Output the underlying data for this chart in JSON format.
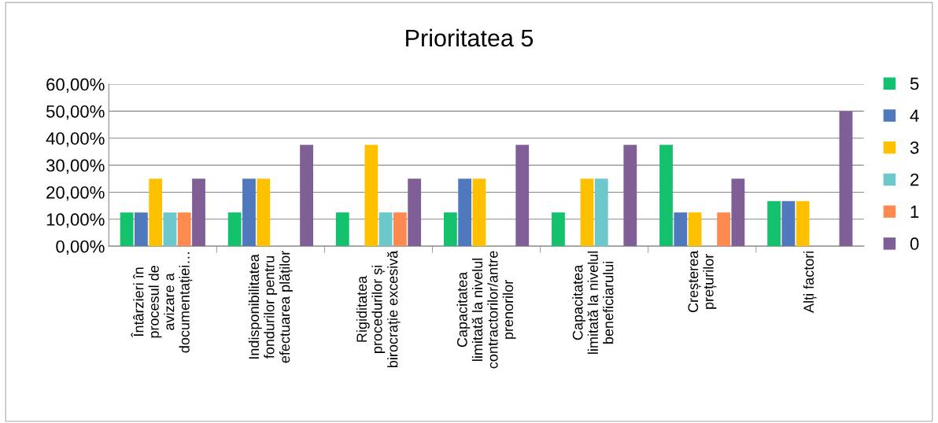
{
  "chart_data": {
    "type": "bar",
    "title": "Prioritatea 5",
    "categories": [
      "Întârzieri în\nprocesul de\navizare a\ndocumentației…",
      "Indisponibilitatea\nfondurilor pentru\nefectuarea plăților",
      "Rigiditatea\nprocedurilor și\nbirocrație excesivă",
      "Capacitatea\nlimitată la nivelul\ncontractorilor/antre\nprenorilor",
      "Capacitatea\nlimitată la nivelul\nbeneficiarului",
      "Creșterea\nprețurilor",
      "Alți factori"
    ],
    "series": [
      {
        "name": "5",
        "color": "#14c26e",
        "values": [
          12.5,
          12.5,
          12.5,
          12.5,
          12.5,
          37.5,
          16.7
        ]
      },
      {
        "name": "4",
        "color": "#4f78bd",
        "values": [
          12.5,
          25,
          0,
          25,
          0,
          12.5,
          16.7
        ]
      },
      {
        "name": "3",
        "color": "#ffc000",
        "values": [
          25,
          25,
          37.5,
          25,
          25,
          12.5,
          16.7
        ]
      },
      {
        "name": "2",
        "color": "#6cc8cb",
        "values": [
          12.5,
          0,
          12.5,
          0,
          25,
          0,
          0
        ]
      },
      {
        "name": "1",
        "color": "#ff8a4f",
        "values": [
          12.5,
          0,
          12.5,
          0,
          0,
          12.5,
          0
        ]
      },
      {
        "name": "0",
        "color": "#7f5f95",
        "values": [
          25,
          37.5,
          25,
          37.5,
          37.5,
          25,
          50
        ]
      }
    ],
    "ylim": [
      0,
      60
    ],
    "yticks": [
      {
        "value": 0,
        "label": "0,00%"
      },
      {
        "value": 10,
        "label": "10,00%"
      },
      {
        "value": 20,
        "label": "20,00%"
      },
      {
        "value": 30,
        "label": "30,00%"
      },
      {
        "value": 40,
        "label": "40,00%"
      },
      {
        "value": 50,
        "label": "50,00%"
      },
      {
        "value": 60,
        "label": "60,00%"
      }
    ],
    "grid": "y",
    "legend": "right"
  }
}
